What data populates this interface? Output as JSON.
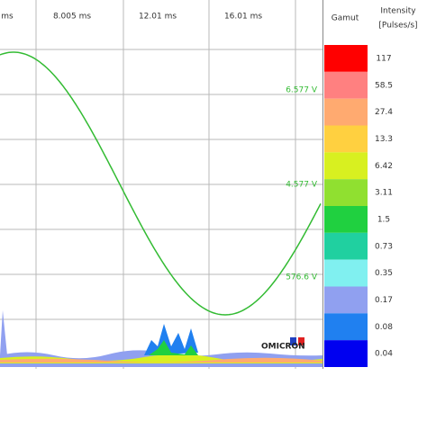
{
  "axis_labels": [
    "ms",
    "8.005 ms",
    "12.01 ms",
    "16.01 ms"
  ],
  "voltage_labels": [
    "6.577 V",
    "4.577 V",
    "576.6 V"
  ],
  "legend": {
    "gamut_label": "Gamut",
    "intensity_label": [
      "Intensity",
      "[Pulses/s]"
    ],
    "entries": [
      {
        "label": "117",
        "color": "#ff0000"
      },
      {
        "label": "58.5",
        "color": "#ff8080"
      },
      {
        "label": "27.4",
        "color": "#ffaa70"
      },
      {
        "label": "13.3",
        "color": "#ffd040"
      },
      {
        "label": "6.42",
        "color": "#d8f020"
      },
      {
        "label": "3.11",
        "color": "#90e030"
      },
      {
        "label": "1.5",
        "color": "#20d040"
      },
      {
        "label": "0.73",
        "color": "#20d0a0"
      },
      {
        "label": "0.35",
        "color": "#80f0f0"
      },
      {
        "label": "0.17",
        "color": "#90a0f0"
      },
      {
        "label": "0.08",
        "color": "#2080f0"
      },
      {
        "label": "0.04",
        "color": "#0000f0"
      }
    ]
  },
  "logo": "OMICRON"
}
